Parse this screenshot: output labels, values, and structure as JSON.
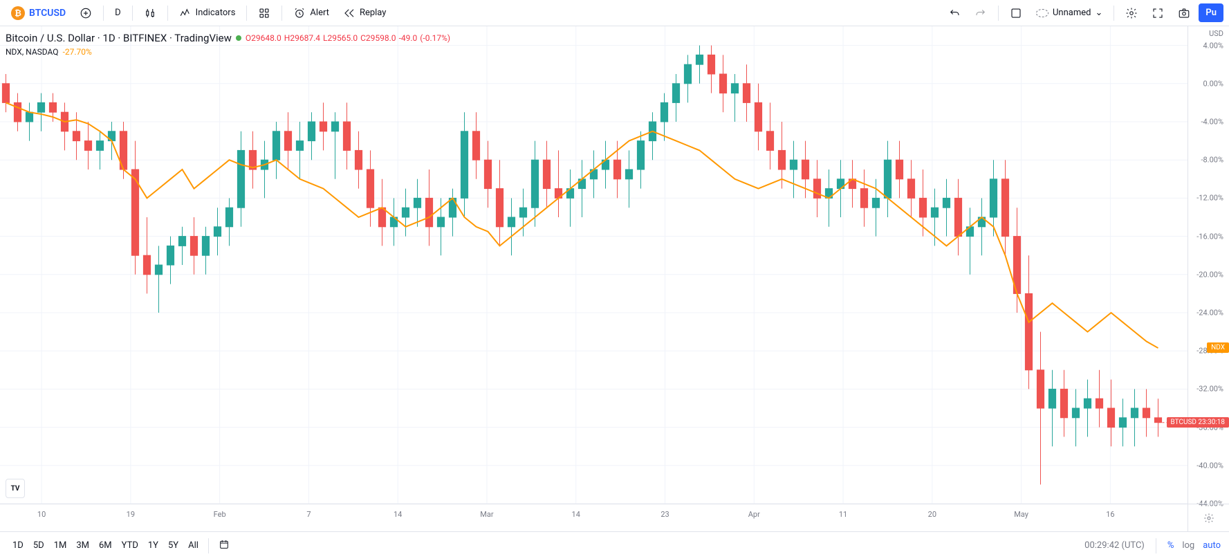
{
  "toolbar": {
    "symbol": "BTCUSD",
    "interval": "D",
    "indicators_label": "Indicators",
    "alert_label": "Alert",
    "replay_label": "Replay",
    "layout_name": "Unnamed"
  },
  "legend": {
    "title": "Bitcoin / U.S. Dollar · 1D · BITFINEX · TradingView",
    "O": "29648.0",
    "H": "29687.4",
    "L": "29565.0",
    "C": "29598.0",
    "chg": "-49.0",
    "chg_pct": "(-0.17%)",
    "ndx_title": "NDX, NASDAQ",
    "ndx_val": "-27.70%"
  },
  "yaxis": {
    "title": "USD",
    "min": -44,
    "max": 6,
    "ticks": [
      4,
      0,
      -4,
      -8,
      -12,
      -16,
      -20,
      -24,
      -28,
      -32,
      -36,
      -40,
      -44
    ],
    "tick_labels": [
      "4.00%",
      "0.00%",
      "-4.00%",
      "-8.00%",
      "-12.00%",
      "-16.00%",
      "-20.00%",
      "-24.00%",
      "-28.00%",
      "-32.00%",
      "-36.00%",
      "-40.00%",
      "-44.00%"
    ]
  },
  "xaxis": {
    "labels": [
      {
        "x": 0.035,
        "t": "10"
      },
      {
        "x": 0.11,
        "t": "19"
      },
      {
        "x": 0.185,
        "t": "Feb"
      },
      {
        "x": 0.26,
        "t": "7"
      },
      {
        "x": 0.335,
        "t": "14"
      },
      {
        "x": 0.41,
        "t": "Mar"
      },
      {
        "x": 0.485,
        "t": "14"
      },
      {
        "x": 0.56,
        "t": "23"
      },
      {
        "x": 0.635,
        "t": "Apr"
      },
      {
        "x": 0.71,
        "t": "11"
      },
      {
        "x": 0.785,
        "t": "20"
      },
      {
        "x": 0.86,
        "t": "May"
      },
      {
        "x": 0.935,
        "t": "16"
      }
    ]
  },
  "price_tags": {
    "ndx": {
      "y": -27.7,
      "label": "NDX"
    },
    "btc": {
      "y": -35.5,
      "label": "BTCUSD",
      "time": "23:30:18"
    }
  },
  "ranges": [
    "1D",
    "5D",
    "1M",
    "3M",
    "6M",
    "YTD",
    "1Y",
    "5Y",
    "All"
  ],
  "bottom": {
    "clock": "00:29:42 (UTC)",
    "pct": "%",
    "log": "log",
    "auto": "auto"
  },
  "colors": {
    "up": "#26a69a",
    "down": "#ef5350",
    "ndx": "#ff9800",
    "grid": "#f0f3fa",
    "text": "#131722",
    "blue": "#2962ff"
  },
  "candles": [
    {
      "o": 0,
      "h": 1,
      "l": -3,
      "c": -2
    },
    {
      "o": -2,
      "h": -1,
      "l": -5,
      "c": -4
    },
    {
      "o": -4,
      "h": -2,
      "l": -6,
      "c": -3
    },
    {
      "o": -3,
      "h": -1,
      "l": -5,
      "c": -2
    },
    {
      "o": -2,
      "h": -1,
      "l": -4,
      "c": -3
    },
    {
      "o": -3,
      "h": -2,
      "l": -7,
      "c": -5
    },
    {
      "o": -5,
      "h": -3,
      "l": -8,
      "c": -6
    },
    {
      "o": -6,
      "h": -4,
      "l": -9,
      "c": -7
    },
    {
      "o": -7,
      "h": -5,
      "l": -9,
      "c": -6
    },
    {
      "o": -6,
      "h": -4,
      "l": -8,
      "c": -5
    },
    {
      "o": -5,
      "h": -4,
      "l": -10,
      "c": -9
    },
    {
      "o": -9,
      "h": -6,
      "l": -20,
      "c": -18
    },
    {
      "o": -18,
      "h": -14,
      "l": -22,
      "c": -20
    },
    {
      "o": -20,
      "h": -17,
      "l": -24,
      "c": -19
    },
    {
      "o": -19,
      "h": -16,
      "l": -21,
      "c": -17
    },
    {
      "o": -17,
      "h": -15,
      "l": -19,
      "c": -16
    },
    {
      "o": -16,
      "h": -14,
      "l": -20,
      "c": -18
    },
    {
      "o": -18,
      "h": -15,
      "l": -20,
      "c": -16
    },
    {
      "o": -16,
      "h": -13,
      "l": -18,
      "c": -15
    },
    {
      "o": -15,
      "h": -12,
      "l": -17,
      "c": -13
    },
    {
      "o": -13,
      "h": -5,
      "l": -15,
      "c": -7
    },
    {
      "o": -7,
      "h": -5,
      "l": -11,
      "c": -9
    },
    {
      "o": -9,
      "h": -6,
      "l": -12,
      "c": -8
    },
    {
      "o": -8,
      "h": -4,
      "l": -10,
      "c": -5
    },
    {
      "o": -5,
      "h": -3,
      "l": -9,
      "c": -7
    },
    {
      "o": -7,
      "h": -4,
      "l": -10,
      "c": -6
    },
    {
      "o": -6,
      "h": -3,
      "l": -8,
      "c": -4
    },
    {
      "o": -4,
      "h": -2,
      "l": -7,
      "c": -5
    },
    {
      "o": -5,
      "h": -3,
      "l": -10,
      "c": -4
    },
    {
      "o": -4,
      "h": -2,
      "l": -9,
      "c": -7
    },
    {
      "o": -7,
      "h": -5,
      "l": -11,
      "c": -9
    },
    {
      "o": -9,
      "h": -7,
      "l": -15,
      "c": -13
    },
    {
      "o": -13,
      "h": -10,
      "l": -17,
      "c": -15
    },
    {
      "o": -15,
      "h": -12,
      "l": -17,
      "c": -14
    },
    {
      "o": -14,
      "h": -11,
      "l": -16,
      "c": -13
    },
    {
      "o": -13,
      "h": -10,
      "l": -15,
      "c": -12
    },
    {
      "o": -12,
      "h": -9,
      "l": -17,
      "c": -15
    },
    {
      "o": -15,
      "h": -12,
      "l": -18,
      "c": -14
    },
    {
      "o": -14,
      "h": -11,
      "l": -16,
      "c": -12
    },
    {
      "o": -12,
      "h": -3,
      "l": -14,
      "c": -5
    },
    {
      "o": -5,
      "h": -3,
      "l": -10,
      "c": -8
    },
    {
      "o": -8,
      "h": -6,
      "l": -13,
      "c": -11
    },
    {
      "o": -11,
      "h": -8,
      "l": -17,
      "c": -15
    },
    {
      "o": -15,
      "h": -12,
      "l": -18,
      "c": -14
    },
    {
      "o": -14,
      "h": -11,
      "l": -16,
      "c": -13
    },
    {
      "o": -13,
      "h": -6,
      "l": -15,
      "c": -8
    },
    {
      "o": -8,
      "h": -6,
      "l": -13,
      "c": -11
    },
    {
      "o": -11,
      "h": -7,
      "l": -14,
      "c": -12
    },
    {
      "o": -12,
      "h": -9,
      "l": -15,
      "c": -11
    },
    {
      "o": -11,
      "h": -8,
      "l": -14,
      "c": -10
    },
    {
      "o": -10,
      "h": -7,
      "l": -12,
      "c": -9
    },
    {
      "o": -9,
      "h": -6,
      "l": -11,
      "c": -8
    },
    {
      "o": -8,
      "h": -6,
      "l": -12,
      "c": -10
    },
    {
      "o": -10,
      "h": -7,
      "l": -13,
      "c": -9
    },
    {
      "o": -9,
      "h": -5,
      "l": -11,
      "c": -6
    },
    {
      "o": -6,
      "h": -3,
      "l": -8,
      "c": -4
    },
    {
      "o": -4,
      "h": -1,
      "l": -6,
      "c": -2
    },
    {
      "o": -2,
      "h": 1,
      "l": -4,
      "c": 0
    },
    {
      "o": 0,
      "h": 3,
      "l": -2,
      "c": 2
    },
    {
      "o": 2,
      "h": 4,
      "l": 0,
      "c": 3
    },
    {
      "o": 3,
      "h": 4,
      "l": -1,
      "c": 1
    },
    {
      "o": 1,
      "h": 3,
      "l": -3,
      "c": -1
    },
    {
      "o": -1,
      "h": 1,
      "l": -4,
      "c": 0
    },
    {
      "o": 0,
      "h": 2,
      "l": -4,
      "c": -2
    },
    {
      "o": -2,
      "h": 0,
      "l": -7,
      "c": -5
    },
    {
      "o": -5,
      "h": -2,
      "l": -9,
      "c": -7
    },
    {
      "o": -7,
      "h": -4,
      "l": -11,
      "c": -9
    },
    {
      "o": -9,
      "h": -6,
      "l": -12,
      "c": -8
    },
    {
      "o": -8,
      "h": -6,
      "l": -12,
      "c": -10
    },
    {
      "o": -10,
      "h": -8,
      "l": -14,
      "c": -12
    },
    {
      "o": -12,
      "h": -9,
      "l": -15,
      "c": -11
    },
    {
      "o": -11,
      "h": -8,
      "l": -14,
      "c": -10
    },
    {
      "o": -10,
      "h": -8,
      "l": -13,
      "c": -11
    },
    {
      "o": -11,
      "h": -9,
      "l": -15,
      "c": -13
    },
    {
      "o": -13,
      "h": -10,
      "l": -16,
      "c": -12
    },
    {
      "o": -12,
      "h": -6,
      "l": -14,
      "c": -8
    },
    {
      "o": -8,
      "h": -6,
      "l": -12,
      "c": -10
    },
    {
      "o": -10,
      "h": -8,
      "l": -14,
      "c": -12
    },
    {
      "o": -12,
      "h": -9,
      "l": -16,
      "c": -14
    },
    {
      "o": -14,
      "h": -11,
      "l": -17,
      "c": -13
    },
    {
      "o": -13,
      "h": -10,
      "l": -16,
      "c": -12
    },
    {
      "o": -12,
      "h": -10,
      "l": -18,
      "c": -16
    },
    {
      "o": -16,
      "h": -13,
      "l": -20,
      "c": -15
    },
    {
      "o": -15,
      "h": -12,
      "l": -18,
      "c": -14
    },
    {
      "o": -14,
      "h": -8,
      "l": -16,
      "c": -10
    },
    {
      "o": -10,
      "h": -8,
      "l": -18,
      "c": -16
    },
    {
      "o": -16,
      "h": -13,
      "l": -24,
      "c": -22
    },
    {
      "o": -22,
      "h": -18,
      "l": -32,
      "c": -30
    },
    {
      "o": -30,
      "h": -26,
      "l": -42,
      "c": -34
    },
    {
      "o": -34,
      "h": -30,
      "l": -38,
      "c": -32
    },
    {
      "o": -32,
      "h": -30,
      "l": -37,
      "c": -35
    },
    {
      "o": -35,
      "h": -32,
      "l": -38,
      "c": -34
    },
    {
      "o": -34,
      "h": -31,
      "l": -37,
      "c": -33
    },
    {
      "o": -33,
      "h": -30,
      "l": -36,
      "c": -34
    },
    {
      "o": -34,
      "h": -31,
      "l": -38,
      "c": -36
    },
    {
      "o": -36,
      "h": -33,
      "l": -38,
      "c": -35
    },
    {
      "o": -35,
      "h": -32,
      "l": -38,
      "c": -34
    },
    {
      "o": -34,
      "h": -32,
      "l": -37,
      "c": -35
    },
    {
      "o": -35,
      "h": -33,
      "l": -37,
      "c": -35.5
    }
  ],
  "ndx_line": [
    -2,
    -2.5,
    -3,
    -3.2,
    -3.5,
    -4,
    -3.8,
    -4.2,
    -5,
    -6,
    -9,
    -10,
    -12,
    -11,
    -10,
    -9,
    -11,
    -10,
    -9,
    -8,
    -8.5,
    -8.8,
    -8.5,
    -8,
    -9,
    -10,
    -10.5,
    -11,
    -12,
    -13,
    -14,
    -13.5,
    -13,
    -14,
    -15,
    -14.5,
    -14,
    -13,
    -12,
    -14,
    -15,
    -15.5,
    -17,
    -16,
    -15,
    -14,
    -13,
    -12,
    -11,
    -10,
    -9,
    -8,
    -7,
    -6,
    -5.5,
    -5,
    -5.5,
    -6,
    -6.5,
    -7,
    -8,
    -9,
    -10,
    -10.5,
    -11,
    -10.5,
    -10,
    -10.5,
    -11,
    -11.5,
    -12,
    -11,
    -10,
    -10.5,
    -11,
    -12,
    -13,
    -14,
    -15,
    -16,
    -17,
    -16,
    -15,
    -14,
    -15,
    -18,
    -22,
    -25,
    -24,
    -23,
    -24,
    -25,
    -26,
    -25,
    -24,
    -25,
    -26,
    -27,
    -27.7
  ]
}
